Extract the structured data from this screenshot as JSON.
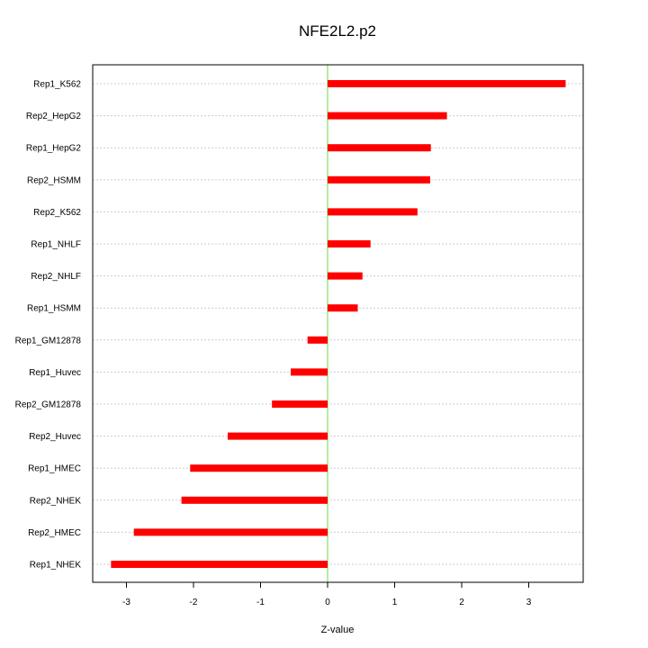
{
  "chart_data": {
    "type": "bar",
    "orientation": "horizontal",
    "title": "NFE2L2.p2",
    "xlabel": "Z-value",
    "ylabel": "",
    "xlim": [
      -3.5,
      3.8
    ],
    "xticks": [
      -3,
      -2,
      -1,
      0,
      1,
      2,
      3
    ],
    "grid": true,
    "legend": "none",
    "categories": [
      "Rep1_K562",
      "Rep2_HepG2",
      "Rep1_HepG2",
      "Rep2_HSMM",
      "Rep2_K562",
      "Rep1_NHLF",
      "Rep2_NHLF",
      "Rep1_HSMM",
      "Rep1_GM12878",
      "Rep1_Huvec",
      "Rep2_GM12878",
      "Rep2_Huvec",
      "Rep1_HMEC",
      "Rep2_NHEK",
      "Rep2_HMEC",
      "Rep1_NHEK"
    ],
    "values": [
      3.55,
      1.78,
      1.54,
      1.53,
      1.34,
      0.64,
      0.52,
      0.45,
      -0.3,
      -0.55,
      -0.83,
      -1.49,
      -2.05,
      -2.18,
      -2.89,
      -3.23
    ],
    "colors": {
      "bar": "#ff0000",
      "zero_line": "#66dd44",
      "grid": "#cccccc",
      "frame": "#000000"
    }
  }
}
